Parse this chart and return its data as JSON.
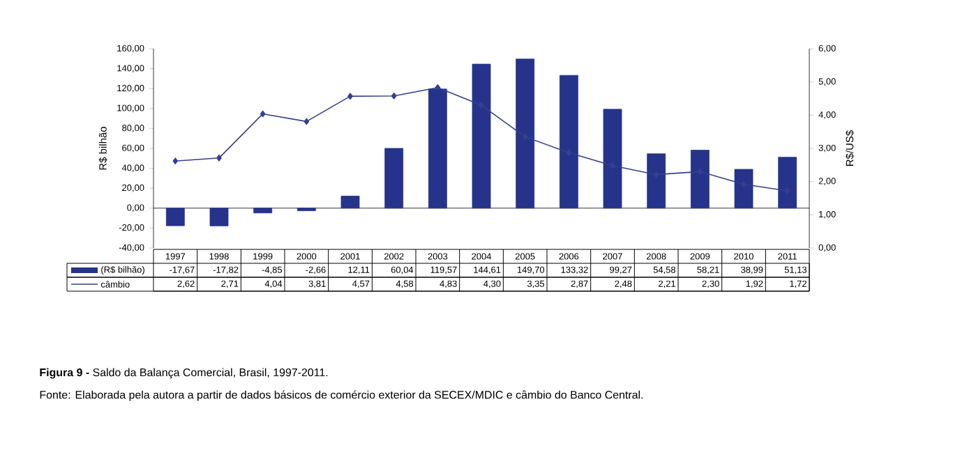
{
  "chart_data": {
    "type": "bar",
    "title": "**Figura 9 -** Saldo da Balança Comercial, Brasil, 1997-2011.",
    "annotations": [
      "Fonte: Elaborada pela autora a partir de dados básicos de comércio exterior da SECEX/MDIC e câmbio do Banco Central."
    ],
    "ylabel": "R$ bilhão",
    "y2label": "R$/US$",
    "categories": [
      "1997",
      "1998",
      "1999",
      "2000",
      "2001",
      "2002",
      "2003",
      "2004",
      "2005",
      "2006",
      "2007",
      "2008",
      "2009",
      "2010",
      "2011"
    ],
    "series": [
      {
        "name": "(R$ bilhão)",
        "color": "#26338a",
        "values": [
          -17.67,
          -17.82,
          -4.85,
          -2.66,
          12.11,
          60.04,
          119.57,
          144.61,
          149.7,
          133.32,
          99.27,
          54.58,
          58.21,
          38.99,
          51.13
        ],
        "value_labels": [
          "-17,67",
          "-17,82",
          "-4,85",
          "-2,66",
          "12,11",
          "60,04",
          "119,57",
          "144,61",
          "149,70",
          "133,32",
          "99,27",
          "54,58",
          "58,21",
          "38,99",
          "51,13"
        ]
      },
      {
        "name": "câmbio",
        "type": "line",
        "axis": "y2",
        "color": "#35408f",
        "values": [
          2.62,
          2.71,
          4.04,
          3.81,
          4.57,
          4.58,
          4.83,
          4.3,
          3.35,
          2.87,
          2.48,
          2.21,
          2.3,
          1.92,
          1.72
        ],
        "value_labels": [
          "2,62",
          "2,71",
          "4,04",
          "3,81",
          "4,57",
          "4,58",
          "4,83",
          "4,30",
          "3,35",
          "2,87",
          "2,48",
          "2,21",
          "2,30",
          "1,92",
          "1,72"
        ]
      }
    ],
    "ylim": [
      -40,
      160
    ],
    "yticks": [
      {
        "value": -40,
        "label": "-40,00"
      },
      {
        "value": -20,
        "label": "-20,00"
      },
      {
        "value": 0,
        "label": "0,00"
      },
      {
        "value": 20,
        "label": "20,00"
      },
      {
        "value": 40,
        "label": "40,00"
      },
      {
        "value": 60,
        "label": "60,00"
      },
      {
        "value": 80,
        "label": "80,00"
      },
      {
        "value": 100,
        "label": "100,00"
      },
      {
        "value": 120,
        "label": "120,00"
      },
      {
        "value": 140,
        "label": "140,00"
      },
      {
        "value": 160,
        "label": "160,00"
      }
    ],
    "y2lim": [
      0,
      6
    ],
    "y2ticks": [
      {
        "value": 0,
        "label": "0,00"
      },
      {
        "value": 1,
        "label": "1,00"
      },
      {
        "value": 2,
        "label": "2,00"
      },
      {
        "value": 3,
        "label": "3,00"
      },
      {
        "value": 4,
        "label": "4,00"
      },
      {
        "value": 5,
        "label": "5,00"
      },
      {
        "value": 6,
        "label": "6,00"
      }
    ],
    "marker": "diamond",
    "legend": "bottom"
  }
}
